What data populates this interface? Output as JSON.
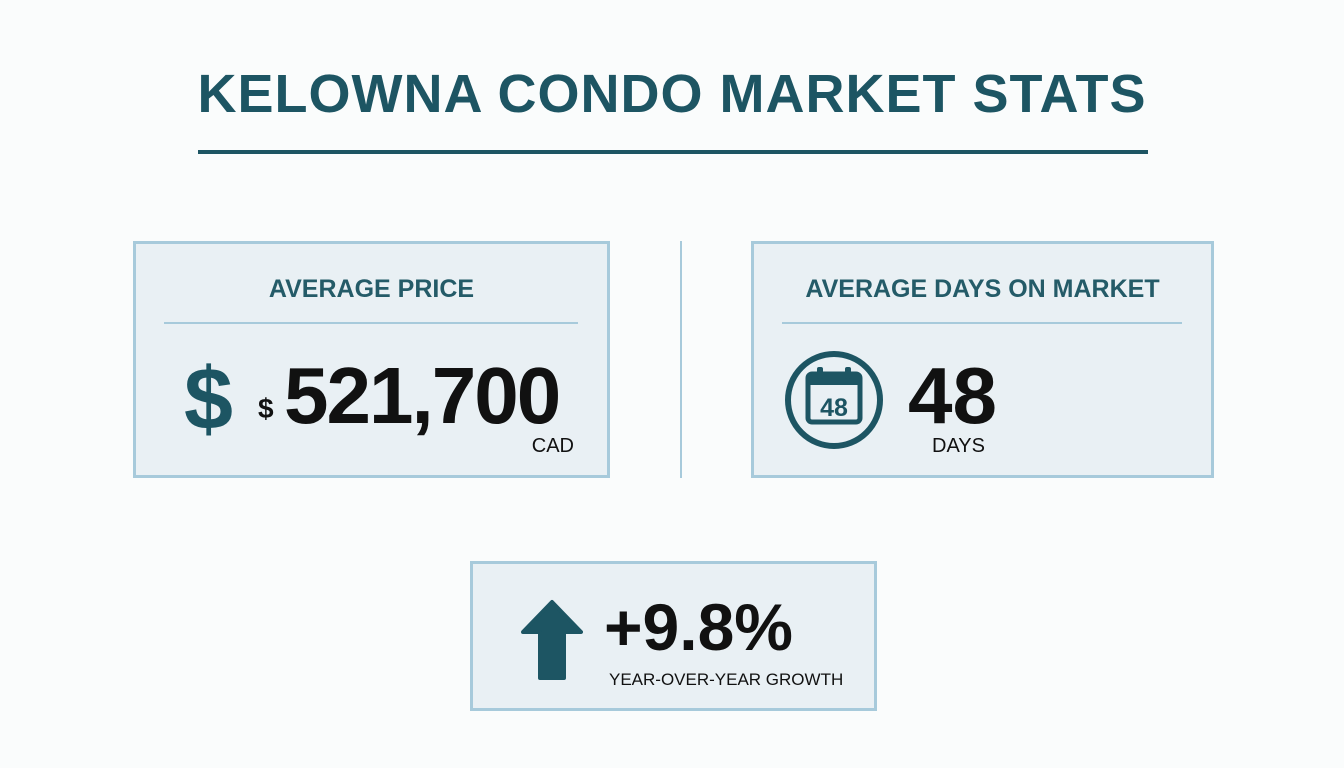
{
  "header": {
    "title": "KELOWNA CONDO MARKET STATS"
  },
  "average_price": {
    "label": "AVERAGE PRICE",
    "icon": "dollar-icon",
    "icon_glyph": "$",
    "currency_symbol": "$",
    "value": "521,700",
    "unit": "CAD"
  },
  "average_days": {
    "label": "AVERAGE DAYS ON MARKET",
    "icon": "calendar-icon",
    "calendar_number": "48",
    "value": "48",
    "unit": "DAYS"
  },
  "growth": {
    "icon": "arrow-up-icon",
    "value": "+9.8%",
    "label": "YEAR-OVER-YEAR GROWTH"
  },
  "colors": {
    "accent": "#1d5563",
    "card_background": "#e9f0f4",
    "card_border": "#a7cadb",
    "value_text": "#111111"
  }
}
